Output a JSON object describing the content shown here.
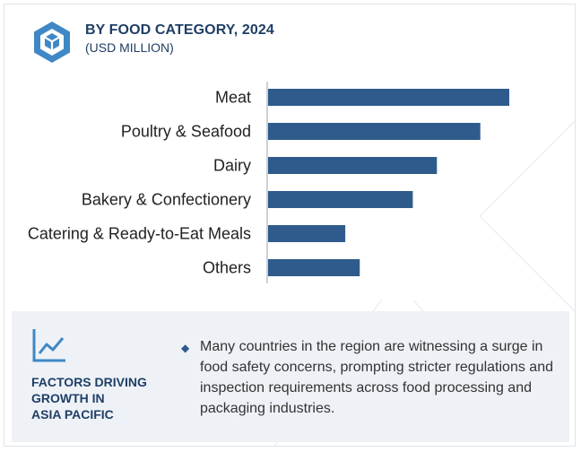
{
  "header": {
    "title": "BY FOOD CATEGORY, 2024",
    "subtitle": "(USD MILLION)"
  },
  "chart_data": {
    "type": "bar",
    "orientation": "horizontal",
    "categories": [
      "Meat",
      "Poultry & Seafood",
      "Dairy",
      "Bakery & Confectionery",
      "Catering & Ready-to-Eat Meals",
      "Others"
    ],
    "values": [
      100,
      88,
      70,
      60,
      32,
      38
    ],
    "xlim": [
      0,
      100
    ],
    "grid": false,
    "bar_color": "#2e5b8c"
  },
  "factors": {
    "title_lines": [
      "FACTORS DRIVING",
      "GROWTH IN",
      "ASIA PACIFIC"
    ],
    "text": "Many countries in the region are witnessing a surge in food safety concerns, prompting stricter regulations and inspection requirements across food processing and packaging industries.",
    "bullet_glyph": "◆",
    "icon": "trend-chart-icon"
  },
  "colors": {
    "accent": "#1f3e66",
    "bar": "#2e5b8c",
    "icon": "#3f88c5",
    "panel": "#eef2f7"
  }
}
